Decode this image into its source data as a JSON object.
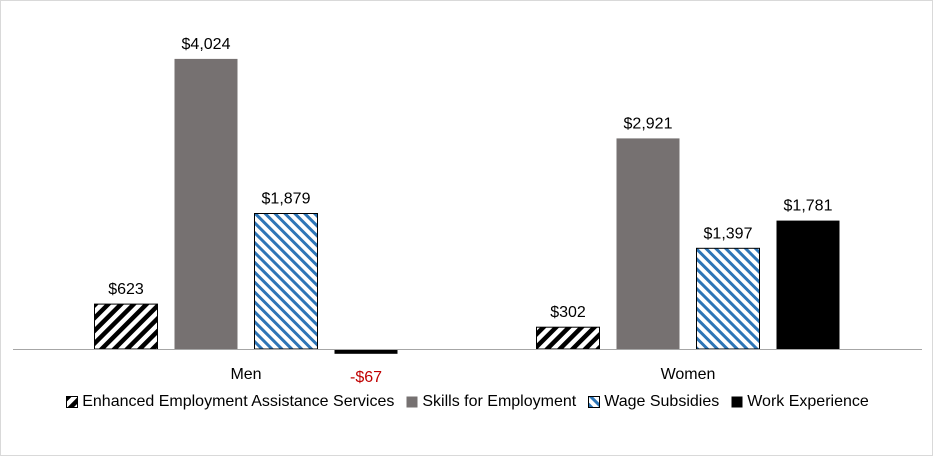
{
  "chart_data": {
    "type": "bar",
    "categories": [
      "Men",
      "Women"
    ],
    "series": [
      {
        "name": "Enhanced Employment Assistance Services",
        "values": [
          623,
          302
        ],
        "labels": [
          "$623",
          "$302"
        ],
        "color": "#000000",
        "pattern": "hatch-diagonal-black"
      },
      {
        "name": "Skills for Employment",
        "values": [
          4024,
          2921
        ],
        "labels": [
          "$4,024",
          "$2,921"
        ],
        "color": "#767171",
        "pattern": "solid"
      },
      {
        "name": "Wage Subsidies",
        "values": [
          1879,
          1397
        ],
        "labels": [
          "$1,879",
          "$1,397"
        ],
        "color": "#2e75b6",
        "pattern": "hatch-diagonal-blue"
      },
      {
        "name": "Work Experience",
        "values": [
          -67,
          1781
        ],
        "labels": [
          "-$67",
          "$1,781"
        ],
        "color": "#000000",
        "pattern": "solid"
      }
    ],
    "negative_label_color": "#c00000",
    "ylim": [
      -300,
      4300
    ],
    "grid": false,
    "legend_position": "bottom",
    "title": "",
    "xlabel": "",
    "ylabel": ""
  }
}
